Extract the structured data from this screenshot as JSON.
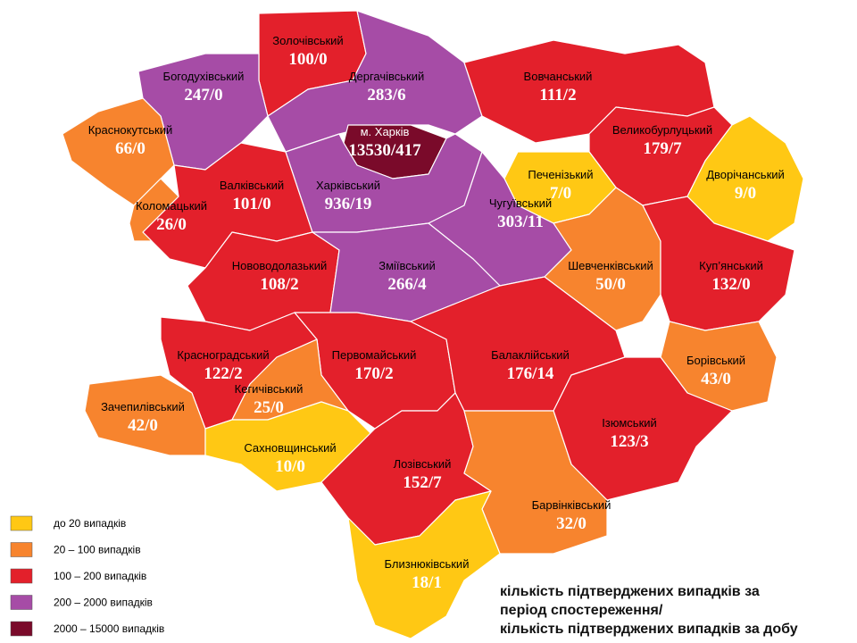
{
  "regions": [
    {
      "name": "Золочівський",
      "label": "100/0",
      "color": "#e3202b"
    },
    {
      "name": "Богодухівський",
      "label": "247/0",
      "color": "#a64ca6"
    },
    {
      "name": "Дергачівський",
      "label": "283/6",
      "color": "#a64ca6"
    },
    {
      "name": "Вовчанський",
      "label": "111/2",
      "color": "#e3202b"
    },
    {
      "name": "Краснокутський",
      "label": "66/0",
      "color": "#f7842e"
    },
    {
      "name": "м. Харків",
      "label": "13530/417",
      "color": "#7a0a2a"
    },
    {
      "name": "Великобурлуцький",
      "label": "179/7",
      "color": "#e3202b"
    },
    {
      "name": "Печенізький",
      "label": "7/0",
      "color": "#ffc814"
    },
    {
      "name": "Дворічанський",
      "label": "9/0",
      "color": "#ffc814"
    },
    {
      "name": "Валківський",
      "label": "101/0",
      "color": "#e3202b"
    },
    {
      "name": "Харківський",
      "label": "936/19",
      "color": "#a64ca6"
    },
    {
      "name": "Коломацький",
      "label": "26/0",
      "color": "#f7842e"
    },
    {
      "name": "Чугуївський",
      "label": "303/11",
      "color": "#a64ca6"
    },
    {
      "name": "Нововодолазький",
      "label": "108/2",
      "color": "#e3202b"
    },
    {
      "name": "Зміївський",
      "label": "266/4",
      "color": "#a64ca6"
    },
    {
      "name": "Шевченківський",
      "label": "50/0",
      "color": "#f7842e"
    },
    {
      "name": "Куп’янський",
      "label": "132/0",
      "color": "#e3202b"
    },
    {
      "name": "Красноградський",
      "label": "122/2",
      "color": "#e3202b"
    },
    {
      "name": "Первомайський",
      "label": "170/2",
      "color": "#e3202b"
    },
    {
      "name": "Балаклійський",
      "label": "176/14",
      "color": "#e3202b"
    },
    {
      "name": "Борівський",
      "label": "43/0",
      "color": "#f7842e"
    },
    {
      "name": "Кегичівський",
      "label": "25/0",
      "color": "#f7842e"
    },
    {
      "name": "Зачепилівський",
      "label": "42/0",
      "color": "#f7842e"
    },
    {
      "name": "Ізюмський",
      "label": "123/3",
      "color": "#e3202b"
    },
    {
      "name": "Сахновщинський",
      "label": "10/0",
      "color": "#ffc814"
    },
    {
      "name": "Лозівський",
      "label": "152/7",
      "color": "#e3202b"
    },
    {
      "name": "Барвінківський",
      "label": "32/0",
      "color": "#f7842e"
    },
    {
      "name": "Близнюківський",
      "label": "18/1",
      "color": "#ffc814"
    }
  ],
  "legend": [
    {
      "label": "до 20  випадків",
      "color": "#ffc814"
    },
    {
      "label": "20 – 100  випадків",
      "color": "#f7842e"
    },
    {
      "label": "100 – 200  випадків",
      "color": "#e3202b"
    },
    {
      "label": "200 – 2000  випадків",
      "color": "#a64ca6"
    },
    {
      "label": "2000 – 15000  випадків",
      "color": "#7a0a2a"
    }
  ],
  "caption": [
    "кількість підтверджених випадків за",
    "період спостереження/",
    "кількість підтверджених випадків за добу"
  ]
}
